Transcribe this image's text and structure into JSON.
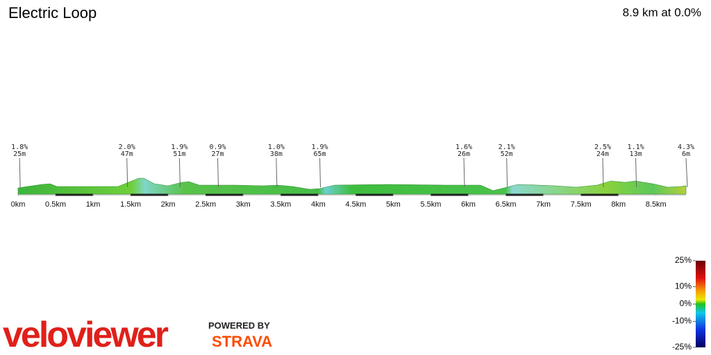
{
  "chart_data": {
    "type": "elevation-profile",
    "title": "Electric Loop",
    "summary": "8.9 km at 0.0%",
    "xlim": [
      0,
      8.9
    ],
    "xticks": [
      {
        "value": 0,
        "label": "0km"
      },
      {
        "value": 0.5,
        "label": "0.5km"
      },
      {
        "value": 1,
        "label": "1km"
      },
      {
        "value": 1.5,
        "label": "1.5km"
      },
      {
        "value": 2,
        "label": "2km"
      },
      {
        "value": 2.5,
        "label": "2.5km"
      },
      {
        "value": 3,
        "label": "3km"
      },
      {
        "value": 3.5,
        "label": "3.5km"
      },
      {
        "value": 4,
        "label": "4km"
      },
      {
        "value": 4.5,
        "label": "4.5km"
      },
      {
        "value": 5,
        "label": "5km"
      },
      {
        "value": 5.5,
        "label": "5.5km"
      },
      {
        "value": 6,
        "label": "6km"
      },
      {
        "value": 6.5,
        "label": "6.5km"
      },
      {
        "value": 7,
        "label": "7km"
      },
      {
        "value": 7.5,
        "label": "7.5km"
      },
      {
        "value": 8,
        "label": "8km"
      },
      {
        "value": 8.5,
        "label": "8.5km"
      }
    ],
    "annotations": [
      {
        "x": 0.02,
        "grade": "1.8%",
        "length": "25m"
      },
      {
        "x": 1.45,
        "grade": "2.0%",
        "length": "47m"
      },
      {
        "x": 2.15,
        "grade": "1.9%",
        "length": "51m"
      },
      {
        "x": 2.66,
        "grade": "0.9%",
        "length": "27m"
      },
      {
        "x": 3.44,
        "grade": "1.0%",
        "length": "38m"
      },
      {
        "x": 4.02,
        "grade": "1.9%",
        "length": "65m"
      },
      {
        "x": 5.94,
        "grade": "1.6%",
        "length": "26m"
      },
      {
        "x": 6.51,
        "grade": "2.1%",
        "length": "52m"
      },
      {
        "x": 7.79,
        "grade": "2.5%",
        "length": "24m"
      },
      {
        "x": 8.23,
        "grade": "1.1%",
        "length": "13m"
      },
      {
        "x": 8.9,
        "grade": "4.3%",
        "length": "6m"
      }
    ],
    "colorscale": {
      "lim": [
        -25,
        25
      ],
      "ticks": [
        {
          "value": 25,
          "label": "25%"
        },
        {
          "value": 10,
          "label": "10%"
        },
        {
          "value": 0,
          "label": "0%"
        },
        {
          "value": -10,
          "label": "-10%"
        },
        {
          "value": -25,
          "label": "-25%"
        }
      ]
    }
  },
  "branding": {
    "logo": "veloviewer",
    "powered": "POWERED BY",
    "partner": "STRAVA"
  }
}
